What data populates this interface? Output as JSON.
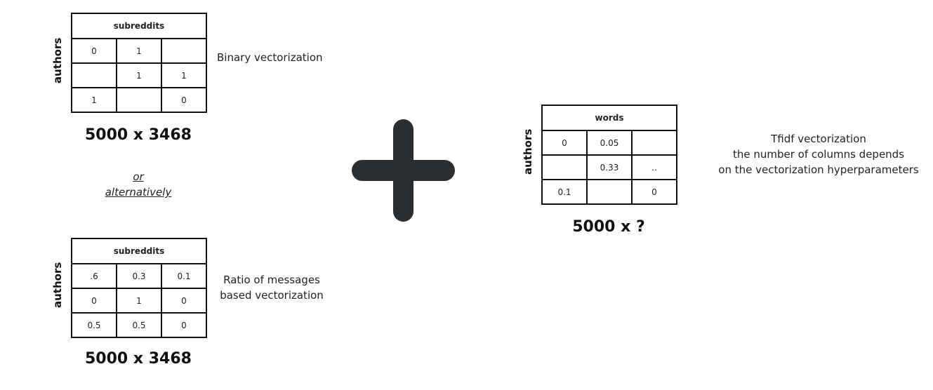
{
  "binary_matrix": {
    "header": "subreddits",
    "side_label": "authors",
    "rows": [
      [
        "0",
        "1",
        ""
      ],
      [
        "",
        "1",
        "1"
      ],
      [
        "1",
        "",
        "0"
      ]
    ],
    "dimensions": "5000 x 3468",
    "caption": "Binary vectorization"
  },
  "separator": {
    "line1": "or",
    "line2": "alternatively"
  },
  "ratio_matrix": {
    "header": "subreddits",
    "side_label": "authors",
    "rows": [
      [
        ".6",
        "0.3",
        "0.1"
      ],
      [
        "0",
        "1",
        "0"
      ],
      [
        "0.5",
        "0.5",
        "0"
      ]
    ],
    "dimensions": "5000 x 3468",
    "caption_line1": "Ratio of messages",
    "caption_line2": "based vectorization"
  },
  "plus_icon": {
    "name": "plus-icon",
    "color": "#2a2e31"
  },
  "tfidf_matrix": {
    "header": "words",
    "side_label": "authors",
    "rows": [
      [
        "0",
        "0.05",
        ""
      ],
      [
        "",
        "0.33",
        ".."
      ],
      [
        "0.1",
        "",
        "0"
      ]
    ],
    "dimensions": "5000 x ?",
    "caption_line1": "Tfidf vectorization",
    "caption_line2": "the number of columns depends",
    "caption_line3": "on the vectorization hyperparameters"
  }
}
